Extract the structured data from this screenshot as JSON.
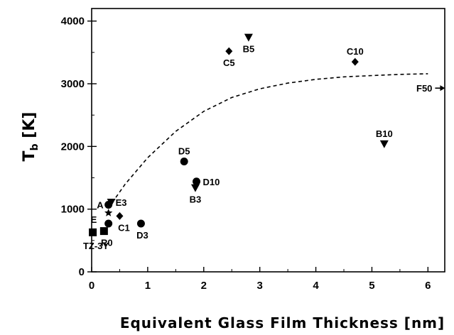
{
  "chart_data": {
    "type": "scatter",
    "xlabel": "Equivalent Glass Film Thickness [nm]",
    "ylabel_main": "T",
    "ylabel_sub": "b",
    "ylabel_unit": " [K]",
    "xlim": [
      0,
      6.3
    ],
    "ylim": [
      0,
      4200
    ],
    "x_ticks": [
      0,
      1,
      2,
      3,
      4,
      5,
      6
    ],
    "y_ticks": [
      0,
      1000,
      2000,
      3000,
      4000
    ],
    "grid": false,
    "colors": {
      "ink": "#000000"
    },
    "points": [
      {
        "x": 2.45,
        "y": 3520,
        "marker": "diamond",
        "label": "C5",
        "lpos": "below"
      },
      {
        "x": 2.8,
        "y": 3740,
        "marker": "triangle-down",
        "label": "B5",
        "lpos": "below"
      },
      {
        "x": 4.7,
        "y": 3350,
        "marker": "diamond",
        "label": "C10",
        "lpos": "above"
      },
      {
        "x": 5.22,
        "y": 2040,
        "marker": "triangle-down",
        "label": "B10",
        "lpos": "above"
      },
      {
        "x": 6.28,
        "y": 2930,
        "marker": "arrow-right",
        "label": "F50",
        "lpos": "left"
      },
      {
        "x": 1.65,
        "y": 1760,
        "marker": "circle",
        "label": "D5",
        "lpos": "above"
      },
      {
        "x": 1.87,
        "y": 1440,
        "marker": "circle",
        "label": "D10",
        "lpos": "right"
      },
      {
        "x": 1.85,
        "y": 1340,
        "marker": "triangle-down",
        "label": "B3",
        "lpos": "below"
      },
      {
        "x": 0.3,
        "y": 1070,
        "marker": "circle",
        "label": "A",
        "lpos": "left"
      },
      {
        "x": 0.35,
        "y": 1110,
        "marker": "triangle-down",
        "label": "E3",
        "lpos": "right"
      },
      {
        "x": 0.3,
        "y": 940,
        "marker": "star",
        "label": "",
        "lpos": "none"
      },
      {
        "x": 0.5,
        "y": 890,
        "marker": "diamond",
        "label": "C1",
        "lpos": "below"
      },
      {
        "x": 0.22,
        "y": 840,
        "marker": "none",
        "label": "E",
        "lpos": "left"
      },
      {
        "x": 0.3,
        "y": 770,
        "marker": "circle",
        "label": "",
        "lpos": "none"
      },
      {
        "x": 0.88,
        "y": 770,
        "marker": "circle",
        "label": "D3",
        "lpos": "below"
      },
      {
        "x": 0.22,
        "y": 650,
        "marker": "square",
        "label": "R0",
        "lpos": "below"
      },
      {
        "x": 0.02,
        "y": 630,
        "marker": "square",
        "label": "",
        "lpos": "none"
      },
      {
        "x": 0.0,
        "y": 420,
        "marker": "none",
        "label": "TZ-3Y",
        "lpos": "center"
      }
    ],
    "fit_curve": {
      "style": "dashed",
      "x": [
        0.3,
        0.6,
        1.0,
        1.5,
        2.0,
        2.5,
        3.0,
        3.5,
        4.0,
        4.5,
        5.0,
        5.5,
        6.0
      ],
      "y": [
        1020,
        1400,
        1820,
        2240,
        2560,
        2780,
        2920,
        3010,
        3070,
        3110,
        3130,
        3150,
        3160
      ]
    }
  }
}
